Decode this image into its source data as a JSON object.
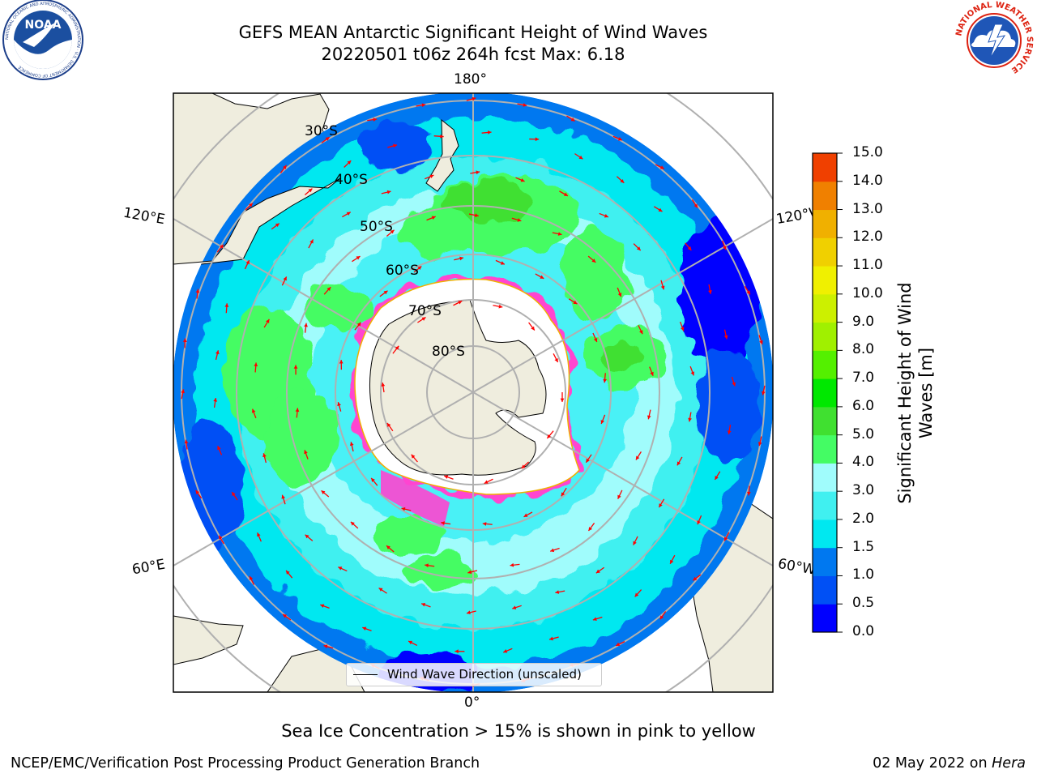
{
  "title": {
    "line1": "GEFS MEAN Antarctic Significant Height of Wind Waves",
    "line2": "20220501 t06z 264h fcst   Max: 6.18"
  },
  "logos": {
    "left": {
      "text": "NOAA",
      "ring_text": "NATIONAL OCEANIC AND ATMOSPHERIC ADMINISTRATION · U.S. DEPARTMENT OF COMMERCE"
    },
    "right": {
      "ring_text": "NATIONAL WEATHER SERVICE"
    }
  },
  "map": {
    "longitude_labels": {
      "top": "180°",
      "bottom": "0°",
      "upper_left": "120°E",
      "lower_left": "60°E",
      "upper_right": "120°W",
      "lower_right": "60°W"
    },
    "latitude_labels": [
      "30°S",
      "40°S",
      "50°S",
      "60°S",
      "70°S",
      "80°S"
    ],
    "colors": {
      "land": "#efedde",
      "ice": "#ffffff",
      "arrow": "#ff0000",
      "grid": "#b0b0b0"
    }
  },
  "colorbar": {
    "label": "Significant Height of Wind Waves [m]",
    "ticks": [
      "0.0",
      "0.5",
      "1.0",
      "1.5",
      "2.0",
      "3.0",
      "4.0",
      "5.0",
      "6.0",
      "7.0",
      "8.0",
      "9.0",
      "10.0",
      "11.0",
      "12.0",
      "13.0",
      "14.0",
      "15.0"
    ],
    "colors": [
      "#0000ff",
      "#0050f5",
      "#0078f0",
      "#00e8f0",
      "#40f0f0",
      "#a0fcfc",
      "#44fc64",
      "#40e030",
      "#00e800",
      "#54f000",
      "#a0f000",
      "#ccf000",
      "#f0f000",
      "#f0d000",
      "#f0b000",
      "#f08000",
      "#f04000",
      "#f00000"
    ]
  },
  "legend": {
    "label": "Wind Wave Direction (unscaled)"
  },
  "footer": {
    "note": "Sea Ice Concentration > 15% is shown in pink to yellow",
    "left": "NCEP/EMC/Verification Post Processing Product Generation Branch",
    "date": "02 May 2022 on",
    "machine": "Hera"
  }
}
